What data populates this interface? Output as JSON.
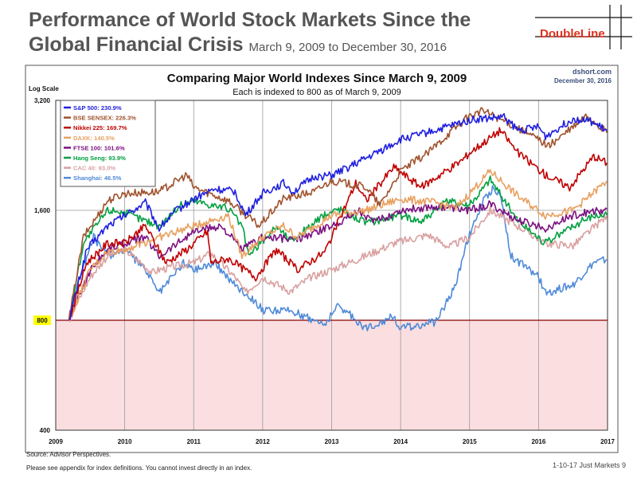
{
  "slide": {
    "title_line1": "Performance of World Stock Markets Since the",
    "title_line2": "Global Financial Crisis",
    "subtitle": "March 9, 2009 to December 30, 2016",
    "logo": "DoubleLine",
    "source": "Source: Advisor Perspectives.",
    "note": "Please see appendix for index definitions. You cannot invest directly in an index.",
    "page": "1-10-17 Just Markets   9"
  },
  "chart_data": {
    "type": "line",
    "title": "Comparing Major World Indexes Since March 9, 2009",
    "subtitle": "Each is indexed to 800 as of March 9, 2009",
    "credit_site": "dshort.com",
    "credit_date": "December 30, 2016",
    "ylabel": "Log Scale",
    "yscale": "log",
    "ylim": [
      400,
      3200
    ],
    "yticks": [
      400,
      800,
      1600,
      3200
    ],
    "ytick_labels": [
      "400",
      "800",
      "1,600",
      "3,200"
    ],
    "xlim": [
      2009,
      2017
    ],
    "xticks": [
      2009,
      2010,
      2011,
      2012,
      2013,
      2014,
      2015,
      2016,
      2017
    ],
    "baseline": 800,
    "baseline_label": "800",
    "colors": {
      "below_baseline_fill": "#fbdfe0",
      "baseline_line": "#8b0000",
      "grid": "#999999"
    },
    "series": [
      {
        "name": "S&P 500",
        "legend": "S&P 500: 230.9%",
        "color": "#1f1fe0",
        "x": [
          2009.19,
          2009.45,
          2009.75,
          2010.0,
          2010.3,
          2010.5,
          2010.75,
          2011.0,
          2011.3,
          2011.6,
          2011.75,
          2012.0,
          2012.3,
          2012.45,
          2012.75,
          2013.0,
          2013.5,
          2014.0,
          2014.5,
          2014.8,
          2015.0,
          2015.5,
          2015.7,
          2016.0,
          2016.1,
          2016.5,
          2016.75,
          2016.99
        ],
        "values": [
          800,
          1250,
          1450,
          1550,
          1680,
          1430,
          1600,
          1720,
          1830,
          1800,
          1550,
          1780,
          1900,
          1800,
          1980,
          1990,
          2220,
          2500,
          2650,
          2750,
          2830,
          2880,
          2650,
          2700,
          2550,
          2850,
          2800,
          2647
        ]
      },
      {
        "name": "BSE SENSEX",
        "legend": "BSE SENSEX: 226.3%",
        "color": "#a0522d",
        "x": [
          2009.19,
          2009.4,
          2009.75,
          2010.0,
          2010.5,
          2010.9,
          2011.0,
          2011.5,
          2011.95,
          2012.3,
          2012.75,
          2013.0,
          2013.5,
          2013.7,
          2014.0,
          2014.4,
          2014.75,
          2015.0,
          2015.2,
          2015.6,
          2016.0,
          2016.15,
          2016.5,
          2016.7,
          2016.99
        ],
        "values": [
          800,
          1350,
          1700,
          1780,
          1800,
          2000,
          1850,
          1700,
          1450,
          1720,
          1800,
          1930,
          1850,
          1650,
          2050,
          2300,
          2650,
          2900,
          3000,
          2750,
          2500,
          2400,
          2700,
          2900,
          2610
        ]
      },
      {
        "name": "Nikkei 225",
        "legend": "Nikkei 225: 169.7%",
        "color": "#c00000",
        "x": [
          2009.19,
          2009.45,
          2009.75,
          2010.0,
          2010.3,
          2010.6,
          2010.9,
          2011.2,
          2011.25,
          2011.5,
          2011.9,
          2012.2,
          2012.5,
          2012.9,
          2013.35,
          2013.5,
          2013.9,
          2014.3,
          2014.9,
          2015.0,
          2015.45,
          2015.7,
          2016.1,
          2016.45,
          2016.8,
          2016.99
        ],
        "values": [
          800,
          1150,
          1300,
          1300,
          1450,
          1150,
          1250,
          1400,
          1150,
          1180,
          1050,
          1250,
          1100,
          1230,
          1900,
          1700,
          2100,
          1850,
          2200,
          2300,
          2650,
          2300,
          2000,
          1850,
          2250,
          2157
        ]
      },
      {
        "name": "DAXK",
        "legend": "DAXK: 140.5%",
        "color": "#e8a060",
        "x": [
          2009.19,
          2009.5,
          2009.75,
          2010.0,
          2010.5,
          2011.0,
          2011.5,
          2011.7,
          2012.0,
          2012.3,
          2012.5,
          2013.0,
          2013.5,
          2014.0,
          2014.5,
          2014.8,
          2015.0,
          2015.3,
          2015.7,
          2016.1,
          2016.5,
          2016.99
        ],
        "values": [
          800,
          1100,
          1230,
          1250,
          1350,
          1450,
          1550,
          1200,
          1350,
          1450,
          1350,
          1550,
          1600,
          1720,
          1680,
          1620,
          1780,
          2050,
          1750,
          1550,
          1600,
          1924
        ]
      },
      {
        "name": "FTSE 100",
        "legend": "FTSE 100: 101.6%",
        "color": "#7b1080",
        "x": [
          2009.19,
          2009.5,
          2009.75,
          2010.0,
          2010.3,
          2010.5,
          2011.0,
          2011.4,
          2011.7,
          2012.0,
          2012.5,
          2013.0,
          2013.4,
          2013.6,
          2014.0,
          2014.5,
          2015.0,
          2015.3,
          2015.7,
          2016.1,
          2016.5,
          2016.99
        ],
        "values": [
          800,
          1100,
          1250,
          1300,
          1350,
          1200,
          1400,
          1450,
          1250,
          1350,
          1330,
          1450,
          1600,
          1480,
          1600,
          1640,
          1600,
          1660,
          1500,
          1430,
          1550,
          1613
        ]
      },
      {
        "name": "Hang Seng",
        "legend": "Hang Seng: 93.9%",
        "color": "#00a040",
        "x": [
          2009.19,
          2009.4,
          2009.75,
          2009.9,
          2010.3,
          2010.5,
          2010.8,
          2011.0,
          2011.5,
          2011.7,
          2011.8,
          2012.2,
          2012.4,
          2012.9,
          2013.1,
          2013.5,
          2014.0,
          2014.3,
          2014.7,
          2015.0,
          2015.3,
          2015.7,
          2016.1,
          2016.5,
          2016.8,
          2016.99
        ],
        "values": [
          800,
          1300,
          1600,
          1600,
          1500,
          1450,
          1650,
          1700,
          1620,
          1450,
          1200,
          1450,
          1320,
          1550,
          1620,
          1480,
          1550,
          1500,
          1700,
          1650,
          1950,
          1500,
          1300,
          1450,
          1550,
          1551
        ]
      },
      {
        "name": "CAC 40",
        "legend": "CAC 40: 93.0%",
        "color": "#d9a0a0",
        "x": [
          2009.19,
          2009.5,
          2009.75,
          2010.0,
          2010.4,
          2010.5,
          2011.0,
          2011.25,
          2011.6,
          2011.75,
          2012.0,
          2012.4,
          2012.7,
          2013.0,
          2013.4,
          2013.9,
          2014.4,
          2014.7,
          2015.0,
          2015.3,
          2015.7,
          2016.1,
          2016.5,
          2016.99
        ],
        "values": [
          800,
          1050,
          1200,
          1250,
          1080,
          1100,
          1150,
          1220,
          1050,
          950,
          1050,
          960,
          1050,
          1100,
          1180,
          1300,
          1370,
          1270,
          1350,
          1600,
          1450,
          1300,
          1280,
          1544
        ]
      },
      {
        "name": "Shanghai",
        "legend": "Shanghai: 46.5%",
        "color": "#4f8ad8",
        "x": [
          2009.19,
          2009.35,
          2009.55,
          2009.75,
          2010.0,
          2010.3,
          2010.5,
          2010.85,
          2011.0,
          2011.3,
          2011.6,
          2011.9,
          2012.0,
          2012.4,
          2012.9,
          2013.1,
          2013.5,
          2013.9,
          2014.0,
          2014.5,
          2014.6,
          2014.8,
          2014.95,
          2015.2,
          2015.35,
          2015.45,
          2015.6,
          2016.0,
          2016.1,
          2016.5,
          2016.8,
          2016.99
        ],
        "values": [
          800,
          1050,
          1350,
          1200,
          1250,
          1100,
          950,
          1150,
          1100,
          1150,
          1000,
          900,
          850,
          850,
          780,
          880,
          760,
          820,
          760,
          790,
          850,
          1000,
          1300,
          1700,
          1850,
          1750,
          1200,
          1050,
          950,
          1000,
          1150,
          1172
        ]
      }
    ]
  }
}
